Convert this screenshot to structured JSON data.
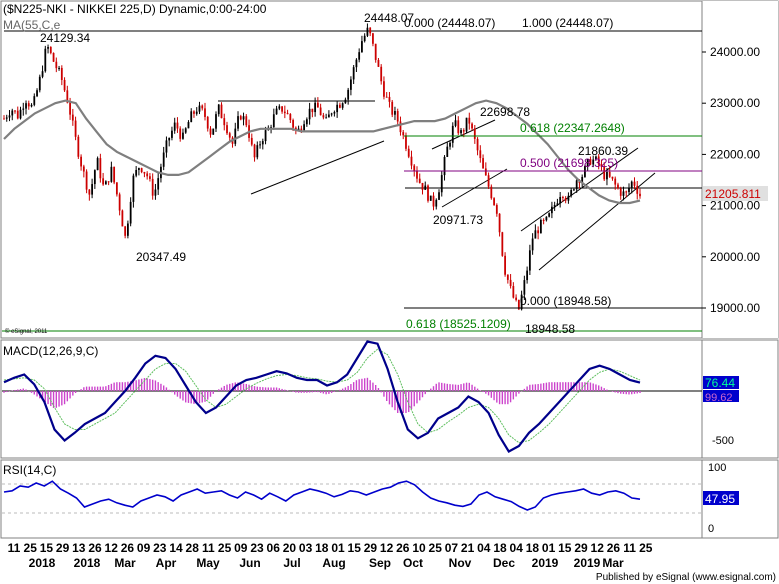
{
  "header": {
    "title": "($N225-NKI - NIKKEI 225,D) Dynamic,0:00-24:00",
    "ma_label": "MA(55,C,e"
  },
  "footer": {
    "credit": "Published by eSignal (www.esignal.com)",
    "small_credit": "© eSignal, 2011"
  },
  "colors": {
    "candle_up": "#000000",
    "candle_down": "#cc0000",
    "ma": "#7f7f7f",
    "fib_green": "#008000",
    "fib_purple": "#800080",
    "macd": "#00008b",
    "signal": "#5fbf5f",
    "hist": "#cc44cc",
    "rsi": "#0000cc",
    "price_tag": "#e0e0e0"
  },
  "chart_data": [
    {
      "type": "candlestick",
      "title": "NIKKEI 225 Daily",
      "ylim": [
        18500,
        24600
      ],
      "yticks": [
        "24000.00",
        "23000.00",
        "22000.00",
        "21000.00",
        "20000.00",
        "19000.00"
      ],
      "ytick_values": [
        24000,
        23000,
        22000,
        21000,
        20000,
        19000
      ],
      "last_price": "21205.811",
      "close_path": [
        22700,
        22900,
        22750,
        23100,
        22900,
        23450,
        24129,
        23800,
        23500,
        23000,
        22300,
        21700,
        21200,
        21900,
        21300,
        21700,
        21100,
        20347,
        21500,
        21800,
        21600,
        21200,
        21800,
        22300,
        22600,
        22300,
        22700,
        22900,
        22800,
        22400,
        22900,
        22600,
        22200,
        22800,
        22600,
        21900,
        22300,
        22500,
        22800,
        22900,
        22700,
        22400,
        22700,
        22900,
        22900,
        22600,
        22900,
        23000,
        23200,
        23700,
        24200,
        24448,
        23900,
        23300,
        22900,
        22700,
        22300,
        21900,
        21500,
        21300,
        21000,
        21400,
        22100,
        22600,
        22400,
        22698,
        22200,
        21700,
        21300,
        20900,
        19800,
        19300,
        18948,
        19600,
        20400,
        20600,
        20700,
        21000,
        21300,
        21100,
        21500,
        21600,
        21900,
        21860,
        21600,
        21500,
        21300,
        21200,
        21500,
        21205
      ],
      "ma_path": [
        22300,
        22500,
        22650,
        22800,
        22900,
        23000,
        23050,
        23000,
        22700,
        22450,
        22200,
        22050,
        21950,
        21850,
        21750,
        21650,
        21600,
        21600,
        21650,
        21800,
        21950,
        22100,
        22250,
        22350,
        22450,
        22500,
        22500,
        22500,
        22500,
        22450,
        22450,
        22450,
        22450,
        22450,
        22450,
        22450,
        22450,
        22500,
        22550,
        22600,
        22650,
        22650,
        22650,
        22700,
        22800,
        22900,
        23000,
        23050,
        23000,
        22900,
        22750,
        22600,
        22400,
        22200,
        21950,
        21700,
        21500,
        21350,
        21200,
        21100,
        21050,
        21050,
        21100
      ],
      "annotations": [
        "24129.34",
        "20347.49",
        "24448.07",
        "22698.78",
        "20971.73",
        "21860.39",
        "18948.58"
      ],
      "fib_levels": [
        {
          "label": "0.000 (24448.07)",
          "value": 24448.07,
          "color": "#000000"
        },
        {
          "label": "1.000 (24448.07)",
          "value": 24448.07,
          "color": "#000000"
        },
        {
          "label": "0.618 (22347.2648)",
          "value": 22347.2648,
          "color": "#008000"
        },
        {
          "label": "0.500 (21698.325)",
          "value": 21698.325,
          "color": "#800080"
        },
        {
          "label": "0.000 (18948.58)",
          "value": 18948.58,
          "color": "#000000"
        },
        {
          "label": "0.618 (18525.1209)",
          "value": 18525.1209,
          "color": "#008000"
        }
      ]
    },
    {
      "type": "line",
      "title": "MACD(12,26,9,C)",
      "ylim": [
        -600,
        500
      ],
      "ytick_labels": [
        "-500"
      ],
      "last_values": [
        "76.44",
        "99.62"
      ],
      "macd_path": [
        80,
        120,
        150,
        60,
        -100,
        -350,
        -450,
        -380,
        -300,
        -250,
        -200,
        -100,
        0,
        120,
        250,
        320,
        300,
        200,
        50,
        -100,
        -200,
        -150,
        -50,
        50,
        100,
        120,
        150,
        180,
        160,
        120,
        100,
        100,
        50,
        80,
        150,
        300,
        450,
        430,
        200,
        -100,
        -350,
        -430,
        -380,
        -250,
        -200,
        -150,
        -50,
        -100,
        -200,
        -400,
        -550,
        -500,
        -380,
        -300,
        -200,
        -100,
        0,
        100,
        200,
        230,
        200,
        150,
        100,
        76
      ],
      "signal_path": [
        100,
        110,
        120,
        100,
        20,
        -150,
        -300,
        -350,
        -350,
        -300,
        -250,
        -200,
        -100,
        0,
        100,
        200,
        250,
        250,
        180,
        50,
        -80,
        -150,
        -120,
        -50,
        20,
        70,
        110,
        140,
        150,
        140,
        120,
        110,
        90,
        80,
        100,
        170,
        300,
        380,
        330,
        150,
        -100,
        -300,
        -380,
        -350,
        -280,
        -220,
        -150,
        -120,
        -150,
        -250,
        -400,
        -470,
        -450,
        -380,
        -300,
        -200,
        -100,
        0,
        100,
        170,
        200,
        180,
        140,
        99
      ]
    },
    {
      "type": "line",
      "title": "RSI(14,C)",
      "ylim": [
        0,
        100
      ],
      "ytick_labels": [
        "100",
        "50",
        "0"
      ],
      "last_value": "47.95",
      "rsi_path": [
        60,
        62,
        70,
        68,
        75,
        70,
        78,
        65,
        58,
        50,
        35,
        40,
        45,
        48,
        42,
        38,
        35,
        45,
        50,
        55,
        52,
        45,
        55,
        60,
        65,
        58,
        60,
        62,
        55,
        50,
        60,
        55,
        48,
        58,
        52,
        45,
        55,
        60,
        65,
        62,
        58,
        52,
        56,
        62,
        60,
        55,
        60,
        65,
        68,
        75,
        78,
        72,
        60,
        50,
        45,
        42,
        38,
        36,
        40,
        55,
        60,
        52,
        48,
        44,
        36,
        30,
        35,
        50,
        55,
        58,
        60,
        62,
        65,
        58,
        55,
        60,
        62,
        58,
        50,
        47.95
      ]
    }
  ],
  "xaxis": {
    "day_labels": [
      "11",
      "25",
      "15",
      "29",
      "13",
      "26",
      "12",
      "26",
      "09",
      "23",
      "14",
      "28",
      "11",
      "25",
      "09",
      "23",
      "06",
      "20",
      "03",
      "18",
      "01",
      "15",
      "29",
      "12",
      "26",
      "10",
      "25",
      "07",
      "21",
      "04",
      "18",
      "04",
      "18",
      "01",
      "15",
      "29",
      "12",
      "26",
      "11",
      "25"
    ],
    "month_labels": [
      "2018",
      "2018",
      "Mar",
      "Apr",
      "May",
      "Jun",
      "Jul",
      "Aug",
      "Sep",
      "Oct",
      "Nov",
      "Dec",
      "2019",
      "2019",
      "Mar"
    ]
  }
}
